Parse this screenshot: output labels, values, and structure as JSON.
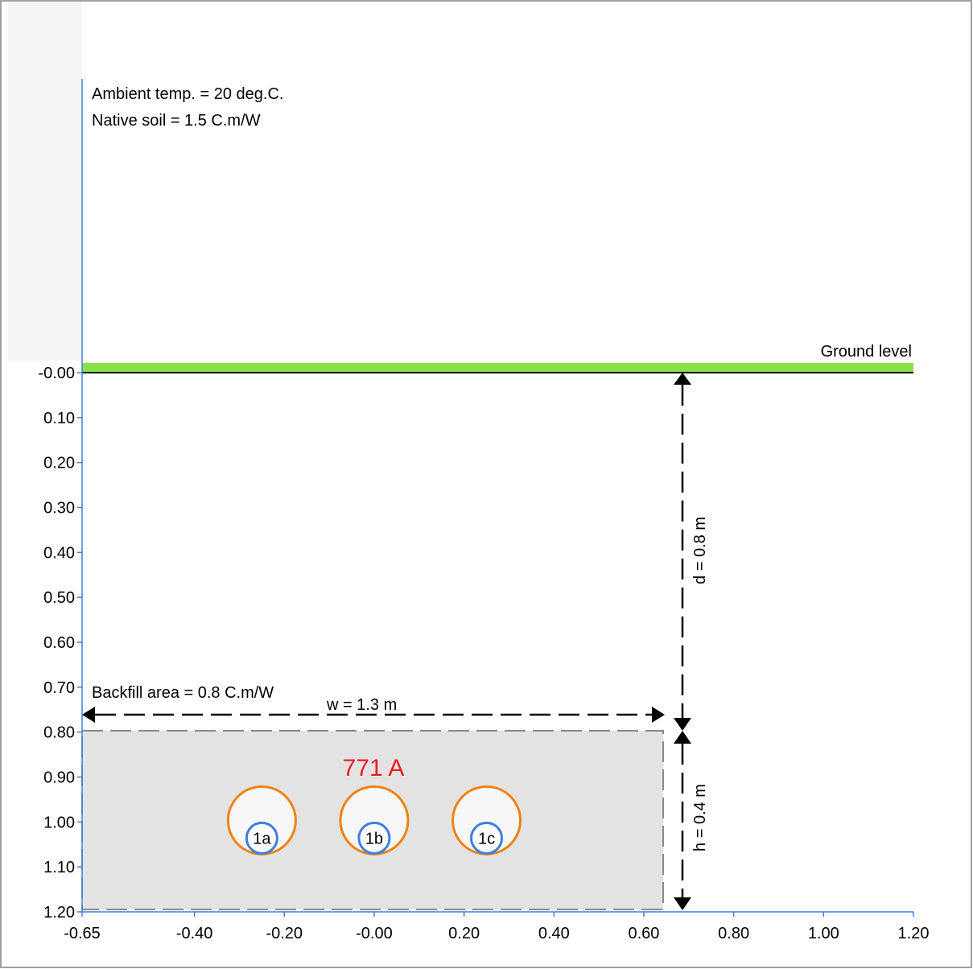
{
  "annotations": {
    "ambient_temp": "Ambient temp. = 20 deg.C.",
    "native_soil": "Native soil = 1.5 C.m/W",
    "ground_level": "Ground level",
    "backfill": "Backfill area = 0.8 C.m/W",
    "width_dim": "w = 1.3 m",
    "depth_dim": "d = 0.8 m",
    "height_dim": "h = 0.4 m",
    "current": "771 A"
  },
  "colors": {
    "axis": "#3c7fe0",
    "ground": "#8ae04a",
    "backfill": "#e4e3e3",
    "cable_outer": "#f0820f",
    "cable_inner": "#3c7fe0",
    "current_text": "#ee1c25"
  },
  "axes": {
    "x_ticks": [
      "-0.65",
      "-0.40",
      "-0.20",
      "-0.00",
      "0.20",
      "0.40",
      "0.60",
      "0.80",
      "1.00",
      "1.20"
    ],
    "x_tick_values": [
      -0.65,
      -0.4,
      -0.2,
      0.0,
      0.2,
      0.4,
      0.6,
      0.8,
      1.0,
      1.2
    ],
    "y_ticks": [
      "-0.00",
      "0.10",
      "0.20",
      "0.30",
      "0.40",
      "0.50",
      "0.60",
      "0.70",
      "0.80",
      "0.90",
      "1.00",
      "1.10",
      "1.20"
    ],
    "y_tick_values": [
      0.0,
      0.1,
      0.2,
      0.3,
      0.4,
      0.5,
      0.6,
      0.7,
      0.8,
      0.9,
      1.0,
      1.1,
      1.2
    ]
  },
  "cables": [
    {
      "label": "1a",
      "x": -0.25,
      "depth": 1.0
    },
    {
      "label": "1b",
      "x": 0.0,
      "depth": 1.0
    },
    {
      "label": "1c",
      "x": 0.25,
      "depth": 1.0
    }
  ]
}
